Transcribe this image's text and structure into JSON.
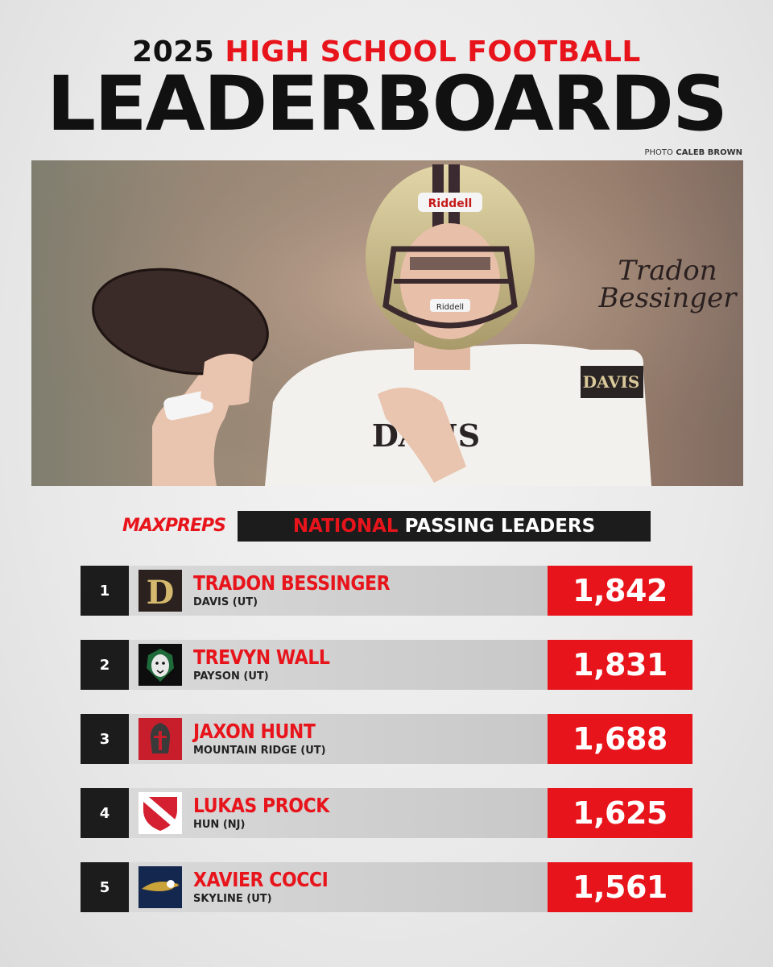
{
  "header": {
    "year": "2025",
    "subtitle": "HIGH SCHOOL FOOTBALL",
    "title": "LEADERBOARDS",
    "photo_credit_label": "PHOTO",
    "photo_credit_name": "CALEB BROWN"
  },
  "photo": {
    "helmet_brand": "Riddell",
    "facemask_brand": "Riddell",
    "jersey_text": "DAVIS",
    "sleeve_text": "DAVIS",
    "signature_line1": "Tradon",
    "signature_line2": "Bessinger"
  },
  "brand": {
    "logo_text": "MAXPREPS"
  },
  "section": {
    "highlight": "NATIONAL",
    "rest": "PASSING LEADERS"
  },
  "leaders": [
    {
      "rank": "1",
      "name": "TRADON BESSINGER",
      "school": "DAVIS (UT)",
      "value": "1,842",
      "logo_icon": "davis-d-logo-icon",
      "logo_letter": "D"
    },
    {
      "rank": "2",
      "name": "TREVYN WALL",
      "school": "PAYSON (UT)",
      "value": "1,831",
      "logo_icon": "payson-lion-logo-icon"
    },
    {
      "rank": "3",
      "name": "JAXON HUNT",
      "school": "MOUNTAIN RIDGE (UT)",
      "value": "1,688",
      "logo_icon": "mountain-ridge-spartan-logo-icon"
    },
    {
      "rank": "4",
      "name": "LUKAS PROCK",
      "school": "HUN (NJ)",
      "value": "1,625",
      "logo_icon": "hun-shield-logo-icon"
    },
    {
      "rank": "5",
      "name": "XAVIER COCCI",
      "school": "SKYLINE (UT)",
      "value": "1,561",
      "logo_icon": "skyline-eagle-logo-icon"
    }
  ],
  "colors": {
    "accent_red": "#e8141b",
    "dark": "#1c1c1c",
    "row_gray": "#d3d3d3"
  }
}
